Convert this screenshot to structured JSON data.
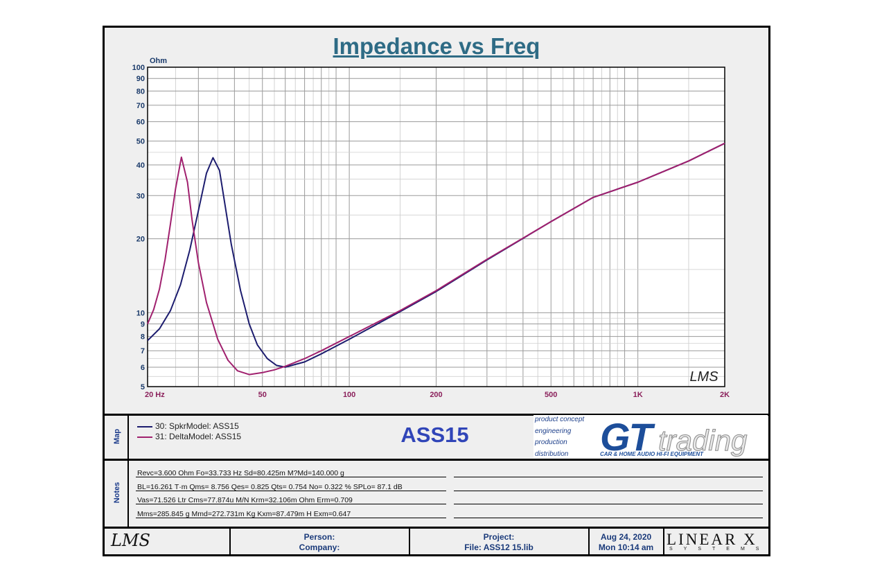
{
  "header": {
    "title": "Impedance vs Freq"
  },
  "chart_data": {
    "type": "line",
    "title": "Impedance vs Freq",
    "ylabel": "Ohm",
    "xlabel": "",
    "xscale": "log",
    "yscale": "log",
    "xlim": [
      20,
      2000
    ],
    "ylim": [
      5,
      100
    ],
    "x_tick_labels": [
      "20  Hz",
      "50",
      "100",
      "200",
      "500",
      "1K",
      "2K"
    ],
    "x_tick_values": [
      20,
      50,
      100,
      200,
      500,
      1000,
      2000
    ],
    "y_tick_labels": [
      "100",
      "90",
      "80",
      "70",
      "60",
      "50",
      "40",
      "30",
      "20",
      "10",
      "9",
      "8",
      "7",
      "6",
      "5"
    ],
    "y_tick_values": [
      100,
      90,
      80,
      70,
      60,
      50,
      40,
      30,
      20,
      10,
      9,
      8,
      7,
      6,
      5
    ],
    "grid": true,
    "legend_position": "bottom-left",
    "series": [
      {
        "name": "30: SpkrModel: ASS15",
        "color": "#1c1c6e",
        "points": [
          [
            20,
            7.7
          ],
          [
            22,
            8.6
          ],
          [
            24,
            10.2
          ],
          [
            26,
            13.0
          ],
          [
            28,
            18.0
          ],
          [
            30,
            26.0
          ],
          [
            32,
            37.0
          ],
          [
            33.7,
            42.8
          ],
          [
            35.5,
            38.0
          ],
          [
            37,
            28.0
          ],
          [
            39,
            19.0
          ],
          [
            42,
            12.3
          ],
          [
            45,
            9.0
          ],
          [
            48,
            7.4
          ],
          [
            52,
            6.5
          ],
          [
            56,
            6.1
          ],
          [
            60,
            6.0
          ],
          [
            70,
            6.3
          ],
          [
            80,
            6.8
          ],
          [
            100,
            7.8
          ],
          [
            150,
            10.1
          ],
          [
            200,
            12.2
          ],
          [
            300,
            16.4
          ],
          [
            500,
            23.5
          ],
          [
            700,
            29.5
          ],
          [
            1000,
            34.0
          ],
          [
            1500,
            41.5
          ],
          [
            2000,
            49.0
          ]
        ]
      },
      {
        "name": "31: DeltaModel: ASS15",
        "color": "#a0206e",
        "points": [
          [
            20,
            9.0
          ],
          [
            21,
            10.3
          ],
          [
            22,
            12.5
          ],
          [
            23,
            16.5
          ],
          [
            24,
            23.0
          ],
          [
            25,
            32.0
          ],
          [
            26.2,
            43.0
          ],
          [
            27.5,
            34.0
          ],
          [
            28.5,
            24.0
          ],
          [
            30,
            16.0
          ],
          [
            32,
            11.0
          ],
          [
            35,
            7.8
          ],
          [
            38,
            6.4
          ],
          [
            41,
            5.8
          ],
          [
            45,
            5.6
          ],
          [
            50,
            5.7
          ],
          [
            55,
            5.85
          ],
          [
            60,
            6.05
          ],
          [
            70,
            6.5
          ],
          [
            80,
            7.0
          ],
          [
            100,
            8.0
          ],
          [
            150,
            10.2
          ],
          [
            200,
            12.3
          ],
          [
            300,
            16.5
          ],
          [
            500,
            23.5
          ],
          [
            700,
            29.5
          ],
          [
            1000,
            34.0
          ],
          [
            1500,
            41.5
          ],
          [
            2000,
            49.0
          ]
        ]
      }
    ]
  },
  "legend": {
    "panel_label": "Map",
    "items": [
      "30: SpkrModel: ASS15",
      "31: DeltaModel: ASS15"
    ]
  },
  "model_name": "ASS15",
  "brand": {
    "lines": [
      "product concept",
      "engineering",
      "production",
      "distribution"
    ],
    "gt": "GT",
    "trading": "trading",
    "tagline": "CAR & HOME AUDIO HI-FI EQUIPMENT"
  },
  "notes": {
    "panel_label": "Notes",
    "lines": [
      "Revc=3.600 Ohm  Fo=33.733 Hz  Sd=80.425m M?Md=140.000 g",
      "BL=16.261 T·m  Qms= 8.756  Qes= 0.825  Qts= 0.754  No= 0.322 %  SPLo= 87.1 dB",
      "Vas=71.526 Ltr  Cms=77.874u M/N  Krm=32.106m Ohm  Erm=0.709",
      "Mms=285.845 g  Mmd=272.731m Kg  Kxm=87.479m H  Exm=0.647"
    ]
  },
  "footer": {
    "lms": "LMS",
    "person_label": "Person:",
    "company_label": "Company:",
    "project_label": "Project:",
    "file_label": "File: ASS12 15.lib",
    "date": "Aug 24, 2020",
    "time": "Mon 10:14 am",
    "linearx": "LINEAR X",
    "systems": "SYSTEMS"
  },
  "chart_watermark": {
    "lms": "LMS"
  }
}
